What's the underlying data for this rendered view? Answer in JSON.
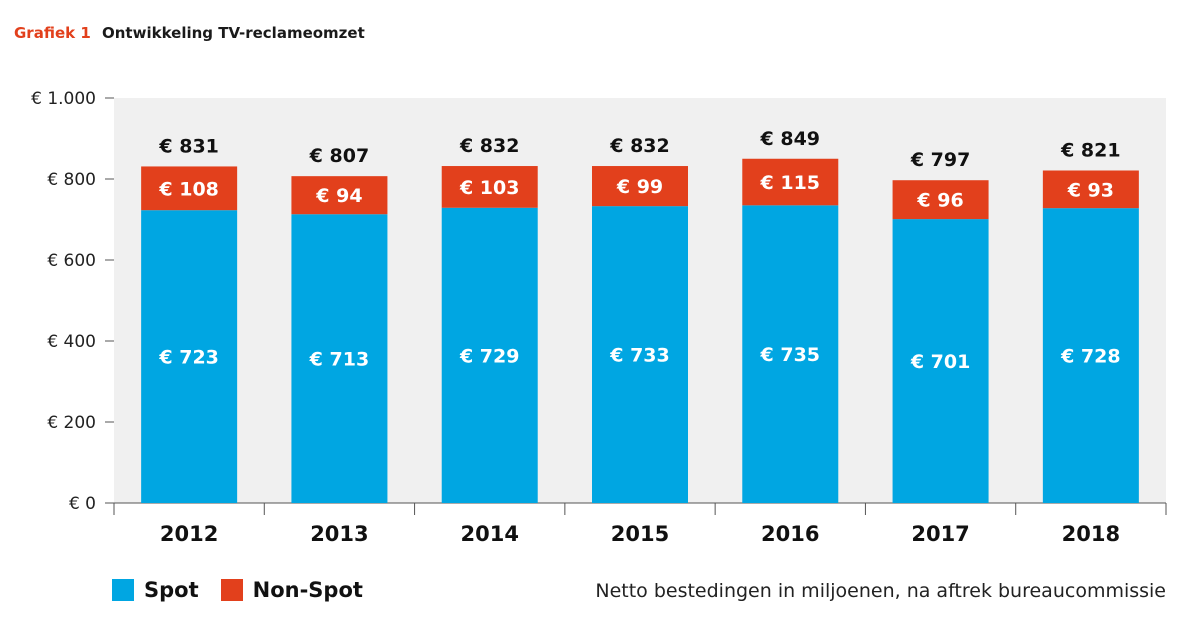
{
  "header": {
    "tag": "Grafiek 1",
    "title": "Ontwikkeling TV-reclameomzet"
  },
  "note": "Netto bestedingen in miljoenen, na aftrek bureaucommissie",
  "colors": {
    "spot": "#00a6e2",
    "non_spot": "#e2401c",
    "plot_bg": "#f0f0f0"
  },
  "chart_data": {
    "type": "bar",
    "stacked": true,
    "categories": [
      "2012",
      "2013",
      "2014",
      "2015",
      "2016",
      "2017",
      "2018"
    ],
    "series": [
      {
        "name": "Spot",
        "values": [
          723,
          713,
          729,
          733,
          735,
          701,
          728
        ],
        "labels": [
          "€ 723",
          "€ 713",
          "€ 729",
          "€ 733",
          "€ 735",
          "€ 701",
          "€ 728"
        ]
      },
      {
        "name": "Non-Spot",
        "values": [
          108,
          94,
          103,
          99,
          115,
          96,
          93
        ],
        "labels": [
          "€ 108",
          "€ 94",
          "€ 103",
          "€ 99",
          "€ 115",
          "€ 96",
          "€ 93"
        ]
      }
    ],
    "totals": [
      831,
      807,
      832,
      832,
      849,
      797,
      821
    ],
    "total_labels": [
      "€ 831",
      "€ 807",
      "€ 832",
      "€ 832",
      "€ 849",
      "€ 797",
      "€ 821"
    ],
    "yticks": [
      0,
      200,
      400,
      600,
      800,
      1000
    ],
    "ytick_labels": [
      "€ 0",
      "€ 200",
      "€ 400",
      "€ 600",
      "€ 800",
      "€ 1.000"
    ],
    "ylim": [
      0,
      1000
    ],
    "legend": "bottom-left",
    "grid": false
  }
}
